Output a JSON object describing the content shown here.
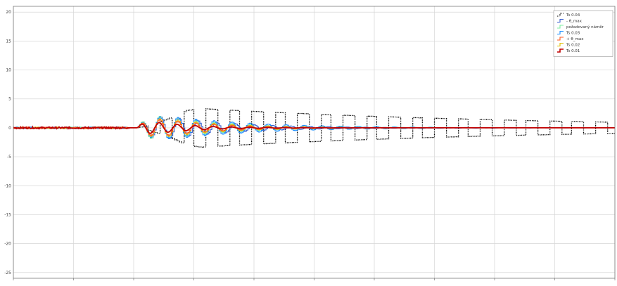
{
  "chart_data": {
    "type": "line",
    "title": "",
    "xlabel": "",
    "ylabel": "",
    "xlim": [
      0,
      10
    ],
    "ylim": [
      -26,
      21
    ],
    "y_ticks": [
      -25,
      -20,
      -15,
      -10,
      -5,
      0,
      5,
      10,
      15,
      20
    ],
    "x_ticks": [
      0,
      1,
      2,
      3,
      4,
      5,
      6,
      7,
      8,
      9,
      10
    ],
    "grid": true,
    "legend_position": "top-right",
    "series": [
      {
        "name": "Ts 0.04",
        "color": "#000000",
        "style": "dotted-stairs",
        "events": [
          {
            "t": 2.05,
            "amp": 2.6,
            "period": 0.16,
            "decay": 0.1,
            "grow": 0.7
          }
        ],
        "base_noise": 0.05
      },
      {
        "name": "- θ_max",
        "color": "#3a5fd0",
        "style": "stairs",
        "events": [
          {
            "t": 2.05,
            "amp": 3.2,
            "period": 0.155,
            "decay": 0.9,
            "grow": 0.5
          }
        ]
      },
      {
        "name": "požadovaný náměr",
        "color": "#7cf0a0",
        "style": "stairs",
        "events": [
          {
            "t": 2.05,
            "amp": 3.4,
            "period": 0.15,
            "decay": 1.0,
            "grow": 0.5
          }
        ]
      },
      {
        "name": "Ts 0.03",
        "color": "#1e90ff",
        "style": "stairs",
        "events": [
          {
            "t": 2.05,
            "amp": 3.0,
            "period": 0.15,
            "decay": 0.7,
            "grow": 0.55
          }
        ]
      },
      {
        "name": "+ θ_max",
        "color": "#ff5a1f",
        "style": "stairs",
        "events": [
          {
            "t": 2.05,
            "amp": 2.4,
            "period": 0.15,
            "decay": 1.1,
            "grow": 0.45
          }
        ]
      },
      {
        "name": "Ts 0.02",
        "color": "#e0c000",
        "style": "stairs",
        "events": [
          {
            "t": 2.05,
            "amp": 2.7,
            "period": 0.15,
            "decay": 1.0,
            "grow": 0.5
          }
        ]
      },
      {
        "name": "Ts 0.01",
        "color": "#c00000",
        "style": "line",
        "events": [
          {
            "t": 2.05,
            "amp": 1.8,
            "period": 0.15,
            "decay": 1.6,
            "grow": 0.4
          }
        ]
      }
    ]
  }
}
